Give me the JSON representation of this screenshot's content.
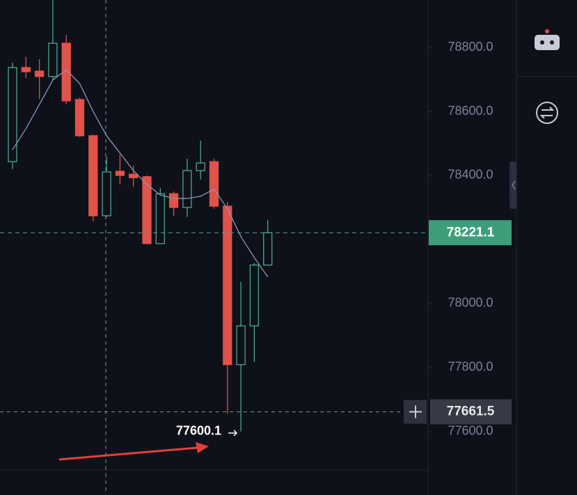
{
  "chart_data": {
    "type": "candlestick",
    "ylim": [
      77480,
      78948
    ],
    "yticks": [
      {
        "value": 77600,
        "label": "77600.0"
      },
      {
        "value": 77800,
        "label": "77800.0"
      },
      {
        "value": 78000,
        "label": "78000.0"
      },
      {
        "value": 78400,
        "label": "78400.0"
      },
      {
        "value": 78600,
        "label": "78600.0"
      },
      {
        "value": 78800,
        "label": "78800.0"
      }
    ],
    "up_color": "#4fa68a",
    "down_color": "#e0524a",
    "open": [
      78443,
      78737,
      78726,
      78709,
      78813,
      78637,
      78524,
      78274,
      78413,
      78404,
      78396,
      78187,
      78343,
      78300,
      78415,
      78443,
      78304,
      77809,
      77930,
      78120
    ],
    "high": [
      78752,
      78770,
      78763,
      78960,
      78839,
      78643,
      78528,
      78459,
      78465,
      78430,
      78400,
      78361,
      78350,
      78452,
      78509,
      78452,
      78317,
      78067,
      78126,
      78261
    ],
    "low": [
      78420,
      78704,
      78639,
      78698,
      78622,
      78520,
      78257,
      78270,
      78372,
      78365,
      78187,
      78187,
      78274,
      78270,
      78387,
      78296,
      77655,
      77600.1,
      77817,
      78120
    ],
    "close": [
      78737,
      78724,
      78709,
      78813,
      78633,
      78524,
      78274,
      78411,
      78400,
      78393,
      78187,
      78343,
      78300,
      78415,
      78439,
      78304,
      77809,
      77930,
      78120,
      78221.1
    ],
    "moving_average": {
      "color": "#8e95b8",
      "values": [
        78480,
        78546,
        78622,
        78698,
        78730,
        78687,
        78600,
        78524,
        78470,
        78415,
        78372,
        78339,
        78328,
        78328,
        78335,
        78357,
        78296,
        78209,
        78143,
        78083
      ]
    },
    "last_price": 78221.1,
    "crosshair_price": 77661.5,
    "low_annotation": 77600.1
  }
}
